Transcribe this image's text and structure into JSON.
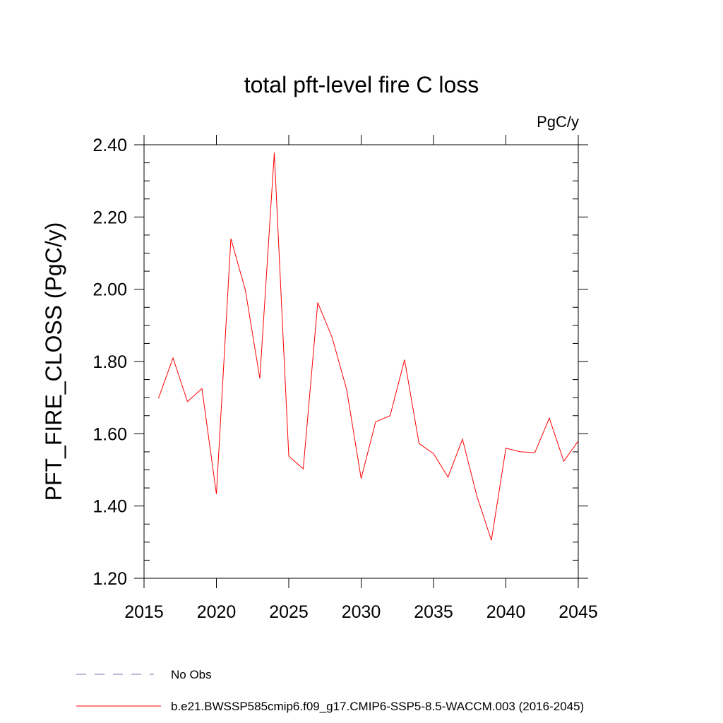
{
  "chart_data": {
    "type": "line",
    "title": "total pft-level fire C loss",
    "units": "PgC/y",
    "xlabel": "",
    "ylabel": "PFT_FIRE_CLOSS  (PgC/y)",
    "xlim": [
      2015,
      2045
    ],
    "ylim": [
      1.2,
      2.4
    ],
    "xticks": [
      2015,
      2020,
      2025,
      2030,
      2035,
      2040,
      2045
    ],
    "xtick_labels": [
      "2015",
      "2020",
      "2025",
      "2030",
      "2035",
      "2040",
      "2045"
    ],
    "yticks": [
      1.2,
      1.4,
      1.6,
      1.8,
      2.0,
      2.2,
      2.4
    ],
    "ytick_labels": [
      "1.20",
      "1.40",
      "1.60",
      "1.80",
      "2.00",
      "2.20",
      "2.40"
    ],
    "grid": false,
    "legend_position": "bottom",
    "series": [
      {
        "name": "No Obs",
        "color": "#7b6fb0",
        "dash": "dashed",
        "x": [],
        "y": []
      },
      {
        "name": "b.e21.BWSSP585cmip6.f09_g17.CMIP6-SSP5-8.5-WACCM.003 (2016-2045)",
        "color": "#ff0000",
        "dash": "solid",
        "x": [
          2016,
          2017,
          2018,
          2019,
          2020,
          2021,
          2022,
          2023,
          2024,
          2025,
          2026,
          2027,
          2028,
          2029,
          2030,
          2031,
          2032,
          2033,
          2034,
          2035,
          2036,
          2037,
          2038,
          2039,
          2040,
          2041,
          2042,
          2043,
          2044,
          2045
        ],
        "y": [
          1.698,
          1.81,
          1.689,
          1.725,
          1.433,
          2.14,
          1.998,
          1.753,
          2.378,
          1.538,
          1.503,
          1.963,
          1.866,
          1.722,
          1.476,
          1.633,
          1.65,
          1.805,
          1.573,
          1.545,
          1.48,
          1.585,
          1.427,
          1.305,
          1.56,
          1.55,
          1.548,
          1.643,
          1.524,
          1.58
        ]
      }
    ]
  }
}
